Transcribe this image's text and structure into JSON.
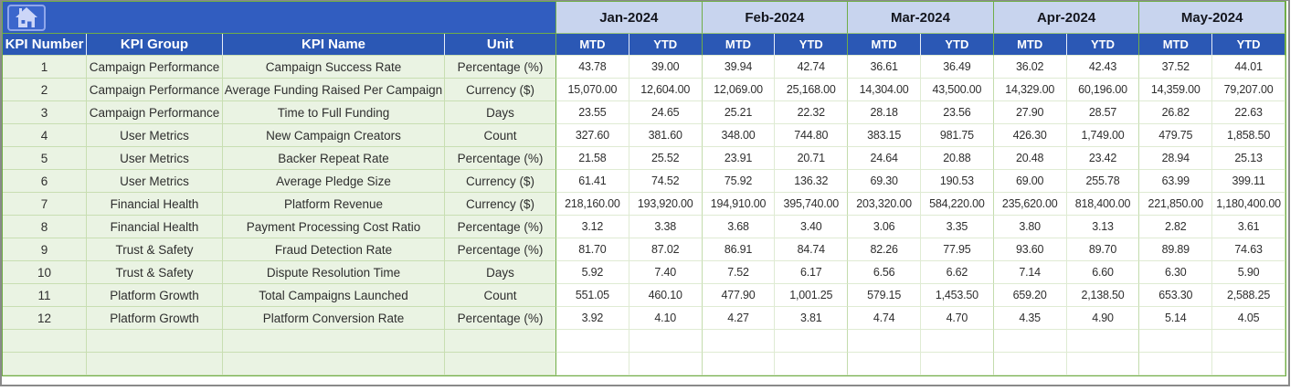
{
  "months": [
    "Jan-2024",
    "Feb-2024",
    "Mar-2024",
    "Apr-2024",
    "May-2024"
  ],
  "sub_columns": [
    "MTD",
    "YTD"
  ],
  "headers": {
    "kpi_number": "KPI Number",
    "kpi_group": "KPI Group",
    "kpi_name": "KPI Name",
    "unit": "Unit"
  },
  "rows": [
    {
      "number": "1",
      "group": "Campaign Performance",
      "name": "Campaign Success Rate",
      "unit": "Percentage (%)",
      "values": [
        "43.78",
        "39.00",
        "39.94",
        "42.74",
        "36.61",
        "36.49",
        "36.02",
        "42.43",
        "37.52",
        "44.01"
      ]
    },
    {
      "number": "2",
      "group": "Campaign Performance",
      "name": "Average Funding Raised Per Campaign",
      "unit": "Currency ($)",
      "values": [
        "15,070.00",
        "12,604.00",
        "12,069.00",
        "25,168.00",
        "14,304.00",
        "43,500.00",
        "14,329.00",
        "60,196.00",
        "14,359.00",
        "79,207.00"
      ]
    },
    {
      "number": "3",
      "group": "Campaign Performance",
      "name": "Time to Full Funding",
      "unit": "Days",
      "values": [
        "23.55",
        "24.65",
        "25.21",
        "22.32",
        "28.18",
        "23.56",
        "27.90",
        "28.57",
        "26.82",
        "22.63"
      ]
    },
    {
      "number": "4",
      "group": "User Metrics",
      "name": "New Campaign Creators",
      "unit": "Count",
      "values": [
        "327.60",
        "381.60",
        "348.00",
        "744.80",
        "383.15",
        "981.75",
        "426.30",
        "1,749.00",
        "479.75",
        "1,858.50"
      ]
    },
    {
      "number": "5",
      "group": "User Metrics",
      "name": "Backer Repeat Rate",
      "unit": "Percentage (%)",
      "values": [
        "21.58",
        "25.52",
        "23.91",
        "20.71",
        "24.64",
        "20.88",
        "20.48",
        "23.42",
        "28.94",
        "25.13"
      ]
    },
    {
      "number": "6",
      "group": "User Metrics",
      "name": "Average Pledge Size",
      "unit": "Currency ($)",
      "values": [
        "61.41",
        "74.52",
        "75.92",
        "136.32",
        "69.30",
        "190.53",
        "69.00",
        "255.78",
        "63.99",
        "399.11"
      ]
    },
    {
      "number": "7",
      "group": "Financial Health",
      "name": "Platform Revenue",
      "unit": "Currency ($)",
      "values": [
        "218,160.00",
        "193,920.00",
        "194,910.00",
        "395,740.00",
        "203,320.00",
        "584,220.00",
        "235,620.00",
        "818,400.00",
        "221,850.00",
        "1,180,400.00"
      ]
    },
    {
      "number": "8",
      "group": "Financial Health",
      "name": "Payment Processing Cost Ratio",
      "unit": "Percentage (%)",
      "values": [
        "3.12",
        "3.38",
        "3.68",
        "3.40",
        "3.06",
        "3.35",
        "3.80",
        "3.13",
        "2.82",
        "3.61"
      ]
    },
    {
      "number": "9",
      "group": "Trust & Safety",
      "name": "Fraud Detection Rate",
      "unit": "Percentage (%)",
      "values": [
        "81.70",
        "87.02",
        "86.91",
        "84.74",
        "82.26",
        "77.95",
        "93.60",
        "89.70",
        "89.89",
        "74.63"
      ]
    },
    {
      "number": "10",
      "group": "Trust & Safety",
      "name": "Dispute Resolution Time",
      "unit": "Days",
      "values": [
        "5.92",
        "7.40",
        "7.52",
        "6.17",
        "6.56",
        "6.62",
        "7.14",
        "6.60",
        "6.30",
        "5.90"
      ]
    },
    {
      "number": "11",
      "group": "Platform Growth",
      "name": "Total Campaigns Launched",
      "unit": "Count",
      "values": [
        "551.05",
        "460.10",
        "477.90",
        "1,001.25",
        "579.15",
        "1,453.50",
        "659.20",
        "2,138.50",
        "653.30",
        "2,588.25"
      ]
    },
    {
      "number": "12",
      "group": "Platform Growth",
      "name": "Platform Conversion Rate",
      "unit": "Percentage (%)",
      "values": [
        "3.92",
        "4.10",
        "4.27",
        "3.81",
        "4.74",
        "4.70",
        "4.35",
        "4.90",
        "5.14",
        "4.05"
      ]
    }
  ],
  "empty_rows": 2,
  "icons": {
    "home": "home-icon"
  },
  "colors": {
    "header_blue": "#2b58b5",
    "band_blue": "#315dc0",
    "month_header_bg": "#c8d4ee",
    "group_separator_green": "#70ad47",
    "left_section_bg": "#eaf3e3",
    "frame_gray": "#8a8a8a"
  }
}
